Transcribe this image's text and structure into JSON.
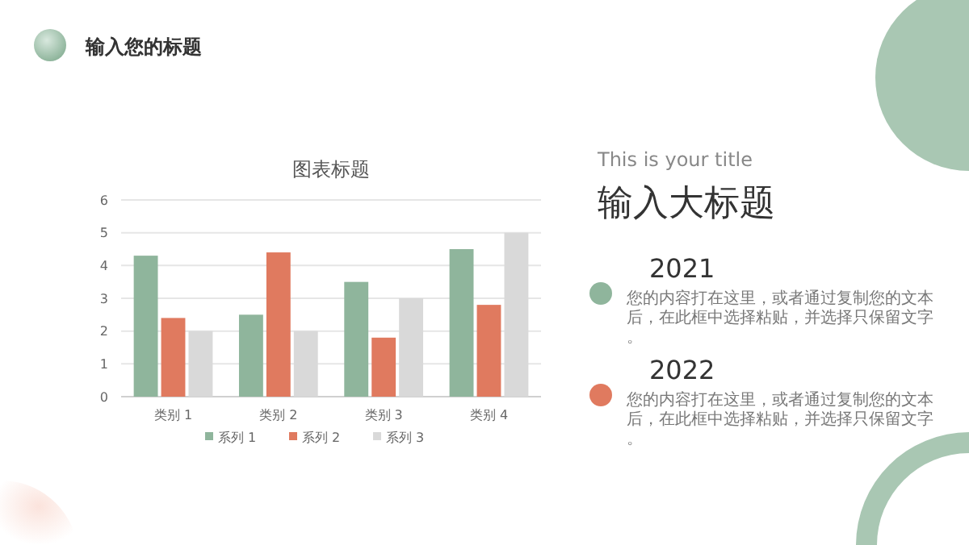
{
  "chart_data": {
    "type": "bar",
    "title": "图表标题",
    "categories": [
      "类别 1",
      "类别 2",
      "类别 3",
      "类别 4"
    ],
    "series": [
      {
        "name": "系列 1",
        "color": "#8fb59c",
        "values": [
          4.3,
          2.5,
          3.5,
          4.5
        ]
      },
      {
        "name": "系列 2",
        "color": "#e07a5f",
        "values": [
          2.4,
          4.4,
          1.8,
          2.8
        ]
      },
      {
        "name": "系列 3",
        "color": "#d9d9d9",
        "values": [
          2,
          2,
          3,
          5
        ]
      }
    ],
    "ylim": [
      0,
      6
    ],
    "yticks": [
      0,
      1,
      2,
      3,
      4,
      5,
      6
    ],
    "grid": "y",
    "legend": "bottom",
    "annotations": [
      "输入您的标题",
      "This is your title",
      "输入大标题",
      "2021",
      "您的内容打在这里，或者通过复制您的文本后，在此框中选择粘贴，并选择只保留文字。",
      "2022",
      "您的内容打在这里，或者通过复制您的文本后，在此框中选择粘贴，并选择只保留文字。"
    ]
  }
}
